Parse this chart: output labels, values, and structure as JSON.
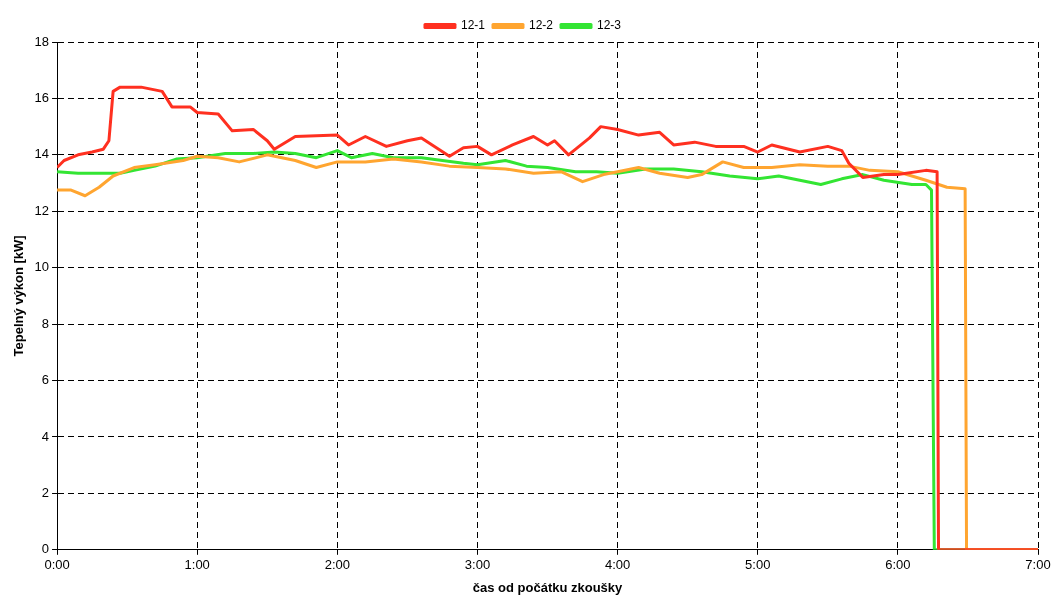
{
  "chart_data": {
    "type": "line",
    "xlabel": "čas od počátku zkoušky",
    "ylabel": "Tepelný výkon [kW]",
    "xlim": [
      0,
      7
    ],
    "ylim": [
      0,
      18
    ],
    "xticks": [
      {
        "value": 0,
        "label": "0:00"
      },
      {
        "value": 1,
        "label": "1:00"
      },
      {
        "value": 2,
        "label": "2:00"
      },
      {
        "value": 3,
        "label": "3:00"
      },
      {
        "value": 4,
        "label": "4:00"
      },
      {
        "value": 5,
        "label": "5:00"
      },
      {
        "value": 6,
        "label": "6:00"
      },
      {
        "value": 7,
        "label": "7:00"
      }
    ],
    "yticks": [
      0,
      2,
      4,
      6,
      8,
      10,
      12,
      14,
      16,
      18
    ],
    "grid": true,
    "legend": "top",
    "marker": "none",
    "line_style": "solid",
    "series": [
      {
        "name": "12-1",
        "color": "#ff3020",
        "x": [
          0,
          0.05,
          0.15,
          0.25,
          0.33,
          0.37,
          0.4,
          0.45,
          0.6,
          0.75,
          0.82,
          0.95,
          1,
          1.15,
          1.25,
          1.4,
          1.5,
          1.55,
          1.6,
          1.7,
          2,
          2.08,
          2.2,
          2.35,
          2.5,
          2.6,
          2.8,
          2.9,
          3,
          3.1,
          3.25,
          3.4,
          3.5,
          3.55,
          3.65,
          3.8,
          3.88,
          4,
          4.15,
          4.3,
          4.4,
          4.55,
          4.7,
          4.9,
          5,
          5.1,
          5.3,
          5.5,
          5.6,
          5.65,
          5.75,
          5.9,
          6,
          6.2,
          6.28,
          6.29,
          7
        ],
        "values": [
          13.55,
          13.8,
          14,
          14.1,
          14.2,
          14.5,
          16.25,
          16.4,
          16.4,
          16.25,
          15.7,
          15.7,
          15.5,
          15.45,
          14.85,
          14.9,
          14.5,
          14.2,
          14.35,
          14.65,
          14.7,
          14.35,
          14.65,
          14.3,
          14.5,
          14.6,
          13.95,
          14.25,
          14.3,
          14,
          14.35,
          14.65,
          14.35,
          14.5,
          14,
          14.6,
          15,
          14.9,
          14.7,
          14.8,
          14.35,
          14.45,
          14.3,
          14.3,
          14.1,
          14.35,
          14.1,
          14.3,
          14.15,
          13.7,
          13.2,
          13.3,
          13.3,
          13.45,
          13.4,
          0,
          0
        ]
      },
      {
        "name": "12-2",
        "color": "#ffa530",
        "x": [
          0,
          0.1,
          0.2,
          0.3,
          0.4,
          0.55,
          0.7,
          0.9,
          1,
          1.15,
          1.3,
          1.5,
          1.7,
          1.85,
          2,
          2.2,
          2.4,
          2.6,
          2.8,
          3,
          3.2,
          3.4,
          3.6,
          3.75,
          3.9,
          4,
          4.15,
          4.3,
          4.5,
          4.6,
          4.75,
          4.9,
          5.1,
          5.3,
          5.5,
          5.65,
          5.8,
          6,
          6.2,
          6.35,
          6.48,
          6.49,
          7
        ],
        "values": [
          12.75,
          12.75,
          12.55,
          12.85,
          13.25,
          13.55,
          13.65,
          13.8,
          13.95,
          13.9,
          13.75,
          14,
          13.8,
          13.55,
          13.75,
          13.75,
          13.85,
          13.75,
          13.6,
          13.55,
          13.5,
          13.35,
          13.4,
          13.05,
          13.3,
          13.4,
          13.55,
          13.35,
          13.2,
          13.3,
          13.75,
          13.55,
          13.55,
          13.65,
          13.6,
          13.6,
          13.45,
          13.4,
          13.1,
          12.85,
          12.8,
          0,
          0
        ]
      },
      {
        "name": "12-3",
        "color": "#33e533",
        "x": [
          0,
          0.15,
          0.3,
          0.45,
          0.55,
          0.7,
          0.85,
          1,
          1.2,
          1.4,
          1.55,
          1.7,
          1.85,
          2,
          2.1,
          2.25,
          2.4,
          2.6,
          2.75,
          2.9,
          3,
          3.2,
          3.35,
          3.5,
          3.7,
          3.85,
          4,
          4.2,
          4.4,
          4.6,
          4.8,
          5,
          5.15,
          5.3,
          5.45,
          5.6,
          5.75,
          5.9,
          6.1,
          6.2,
          6.24,
          6.26,
          7
        ],
        "values": [
          13.4,
          13.35,
          13.35,
          13.35,
          13.45,
          13.6,
          13.85,
          13.9,
          14.05,
          14.05,
          14.1,
          14.05,
          13.9,
          14.15,
          13.9,
          14.05,
          13.9,
          13.9,
          13.8,
          13.7,
          13.65,
          13.8,
          13.6,
          13.55,
          13.4,
          13.4,
          13.35,
          13.5,
          13.5,
          13.4,
          13.25,
          13.15,
          13.25,
          13.1,
          12.95,
          13.15,
          13.3,
          13.1,
          12.95,
          12.95,
          12.75,
          0,
          0
        ]
      }
    ]
  }
}
